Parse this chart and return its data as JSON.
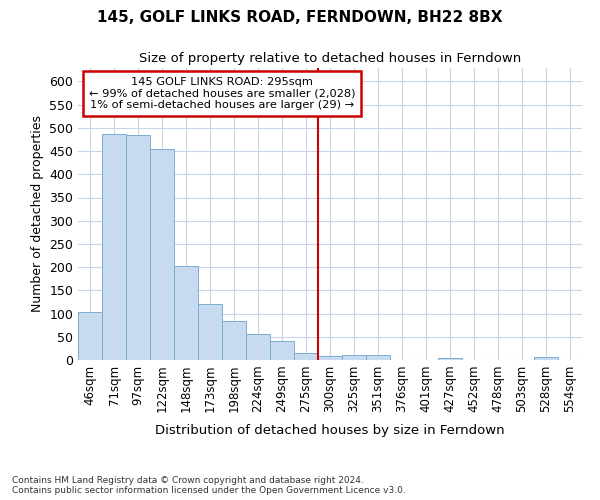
{
  "title": "145, GOLF LINKS ROAD, FERNDOWN, BH22 8BX",
  "subtitle": "Size of property relative to detached houses in Ferndown",
  "xlabel_bottom": "Distribution of detached houses by size in Ferndown",
  "ylabel": "Number of detached properties",
  "footer": "Contains HM Land Registry data © Crown copyright and database right 2024.\nContains public sector information licensed under the Open Government Licence v3.0.",
  "bar_color": "#c8daf0",
  "bar_edge_color": "#7aaed0",
  "grid_color": "#c8d4e8",
  "annotation_box_color": "#cc0000",
  "vline_color": "#cc0000",
  "categories": [
    "46sqm",
    "71sqm",
    "97sqm",
    "122sqm",
    "148sqm",
    "173sqm",
    "198sqm",
    "224sqm",
    "249sqm",
    "275sqm",
    "300sqm",
    "325sqm",
    "351sqm",
    "376sqm",
    "401sqm",
    "427sqm",
    "452sqm",
    "478sqm",
    "503sqm",
    "528sqm",
    "554sqm"
  ],
  "values": [
    104,
    487,
    484,
    454,
    202,
    120,
    83,
    57,
    40,
    15,
    9,
    11,
    10,
    1,
    0,
    5,
    0,
    0,
    0,
    7,
    0
  ],
  "vline_index": 10,
  "annotation_lines": [
    "145 GOLF LINKS ROAD: 295sqm",
    "← 99% of detached houses are smaller (2,028)",
    "1% of semi-detached houses are larger (29) →"
  ],
  "ylim": [
    0,
    630
  ],
  "yticks": [
    0,
    50,
    100,
    150,
    200,
    250,
    300,
    350,
    400,
    450,
    500,
    550,
    600
  ]
}
